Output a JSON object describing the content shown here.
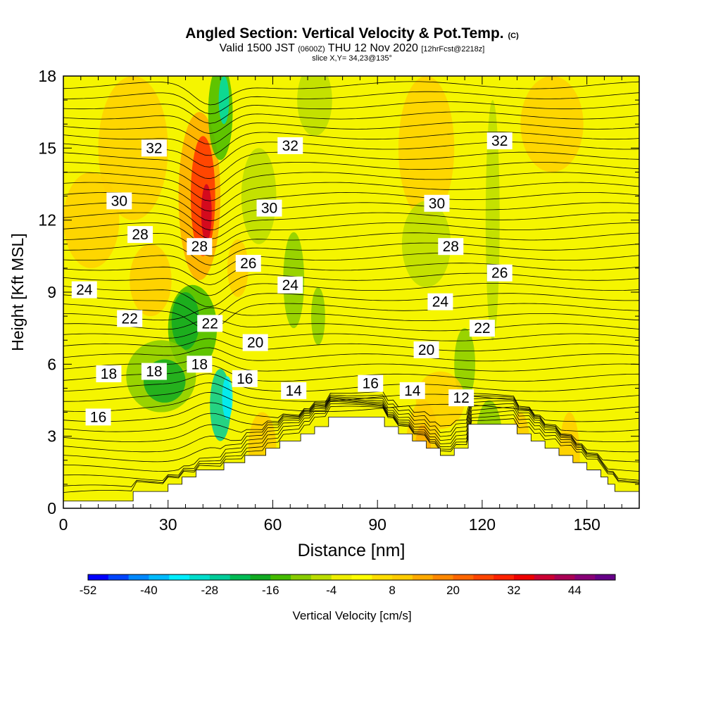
{
  "title": {
    "main": "Angled Section: Vertical Velocity & Pot.Temp.",
    "main_suffix": "(C)",
    "valid_prefix": "Valid 1500 JST",
    "valid_utc": "(0600Z)",
    "valid_date": "THU 12 Nov 2020",
    "forecast": "[12hrFcst@2218z]",
    "slice": "slice X,Y= 34,23@135°"
  },
  "chart_data": {
    "type": "heatmap",
    "xlabel": "Distance [nm]",
    "ylabel": "Height [Kft MSL]",
    "xlim": [
      0,
      165
    ],
    "ylim": [
      0,
      18
    ],
    "x_ticks": [
      0,
      30,
      60,
      90,
      120,
      150
    ],
    "y_ticks": [
      0,
      3,
      6,
      9,
      12,
      15,
      18
    ],
    "grid": false,
    "colorbar": {
      "label": "Vertical Velocity [cm/s]",
      "tick_labels": [
        "-52",
        "-40",
        "-28",
        "-16",
        "-4",
        "8",
        "20",
        "32",
        "44"
      ],
      "range": [
        -52,
        52
      ],
      "colors": [
        "#0000ff",
        "#0044ff",
        "#0088ff",
        "#00bbff",
        "#00eeff",
        "#00ddcc",
        "#00cc99",
        "#00bb55",
        "#11aa22",
        "#44bb00",
        "#88cc00",
        "#bbdd00",
        "#eeee00",
        "#ffff00",
        "#ffdd00",
        "#ffcc00",
        "#ffaa00",
        "#ff8800",
        "#ff6600",
        "#ff4400",
        "#ff2200",
        "#ee0000",
        "#cc0033",
        "#aa0055",
        "#880077",
        "#660088"
      ]
    },
    "isentrope_labels": [
      {
        "text": "32",
        "x": 26,
        "y": 15.0
      },
      {
        "text": "32",
        "x": 65,
        "y": 15.1
      },
      {
        "text": "32",
        "x": 125,
        "y": 15.3
      },
      {
        "text": "30",
        "x": 16,
        "y": 12.8
      },
      {
        "text": "30",
        "x": 59,
        "y": 12.5
      },
      {
        "text": "30",
        "x": 107,
        "y": 12.7
      },
      {
        "text": "28",
        "x": 22,
        "y": 11.4
      },
      {
        "text": "28",
        "x": 39,
        "y": 10.9
      },
      {
        "text": "28",
        "x": 111,
        "y": 10.9
      },
      {
        "text": "26",
        "x": 53,
        "y": 10.2
      },
      {
        "text": "26",
        "x": 125,
        "y": 9.8
      },
      {
        "text": "24",
        "x": 6,
        "y": 9.1
      },
      {
        "text": "24",
        "x": 65,
        "y": 9.3
      },
      {
        "text": "24",
        "x": 108,
        "y": 8.6
      },
      {
        "text": "22",
        "x": 19,
        "y": 7.9
      },
      {
        "text": "22",
        "x": 42,
        "y": 7.7
      },
      {
        "text": "22",
        "x": 120,
        "y": 7.5
      },
      {
        "text": "20",
        "x": 55,
        "y": 6.9
      },
      {
        "text": "20",
        "x": 104,
        "y": 6.6
      },
      {
        "text": "18",
        "x": 13,
        "y": 5.6
      },
      {
        "text": "18",
        "x": 26,
        "y": 5.7
      },
      {
        "text": "18",
        "x": 39,
        "y": 6.0
      },
      {
        "text": "16",
        "x": 52,
        "y": 5.4
      },
      {
        "text": "16",
        "x": 88,
        "y": 5.2
      },
      {
        "text": "16",
        "x": 10,
        "y": 3.8
      },
      {
        "text": "14",
        "x": 66,
        "y": 4.9
      },
      {
        "text": "14",
        "x": 100,
        "y": 4.9
      },
      {
        "text": "12",
        "x": 114,
        "y": 4.6
      }
    ],
    "terrain_height_kft": [
      0.3,
      0.3,
      0.3,
      0.3,
      0.3,
      0.3,
      0.3,
      0.3,
      0.3,
      0.3,
      0.7,
      0.7,
      0.7,
      0.7,
      0.7,
      1.0,
      1.0,
      1.3,
      1.3,
      1.6,
      1.6,
      1.6,
      1.6,
      1.9,
      1.9,
      1.9,
      2.2,
      2.2,
      2.2,
      2.5,
      2.5,
      2.8,
      2.8,
      2.8,
      3.1,
      3.1,
      3.4,
      3.4,
      3.8,
      3.8,
      3.8,
      3.8,
      3.8,
      3.8,
      3.8,
      3.8,
      3.4,
      3.4,
      3.1,
      3.1,
      2.8,
      2.8,
      2.5,
      2.5,
      2.2,
      2.2,
      2.5,
      2.5,
      3.5,
      3.5,
      3.5,
      3.5,
      3.5,
      3.5,
      3.5,
      3.1,
      3.1,
      2.8,
      2.8,
      2.5,
      2.5,
      2.2,
      2.2,
      1.9,
      1.9,
      1.6,
      1.6,
      1.3,
      1.0,
      0.7,
      0.7,
      0.7,
      0.7,
      0.7,
      0.3
    ]
  }
}
